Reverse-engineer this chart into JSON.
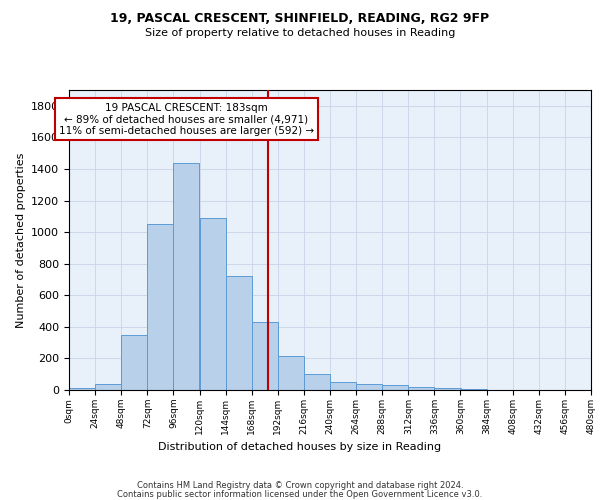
{
  "title1": "19, PASCAL CRESCENT, SHINFIELD, READING, RG2 9FP",
  "title2": "Size of property relative to detached houses in Reading",
  "xlabel": "Distribution of detached houses by size in Reading",
  "ylabel": "Number of detached properties",
  "bin_edges": [
    0,
    24,
    48,
    72,
    96,
    120,
    144,
    168,
    192,
    216,
    240,
    264,
    288,
    312,
    336,
    360,
    384,
    408,
    432,
    456,
    480
  ],
  "counts": [
    10,
    35,
    350,
    1050,
    1440,
    1090,
    725,
    430,
    215,
    100,
    50,
    40,
    30,
    20,
    10,
    5,
    3,
    2,
    1,
    0
  ],
  "bar_color": "#b8d0ea",
  "bar_edge_color": "#5b9bd5",
  "vline_x": 183,
  "vline_color": "#c00000",
  "annotation_text": "19 PASCAL CRESCENT: 183sqm\n← 89% of detached houses are smaller (4,971)\n11% of semi-detached houses are larger (592) →",
  "annotation_box_color": "#c00000",
  "annotation_bg": "#ffffff",
  "ylim": [
    0,
    1900
  ],
  "yticks": [
    0,
    200,
    400,
    600,
    800,
    1000,
    1200,
    1400,
    1600,
    1800
  ],
  "xtick_labels": [
    "0sqm",
    "24sqm",
    "48sqm",
    "72sqm",
    "96sqm",
    "120sqm",
    "144sqm",
    "168sqm",
    "192sqm",
    "216sqm",
    "240sqm",
    "264sqm",
    "288sqm",
    "312sqm",
    "336sqm",
    "360sqm",
    "384sqm",
    "408sqm",
    "432sqm",
    "456sqm",
    "480sqm"
  ],
  "footer1": "Contains HM Land Registry data © Crown copyright and database right 2024.",
  "footer2": "Contains public sector information licensed under the Open Government Licence v3.0.",
  "plot_bg_color": "#e8f0fa"
}
